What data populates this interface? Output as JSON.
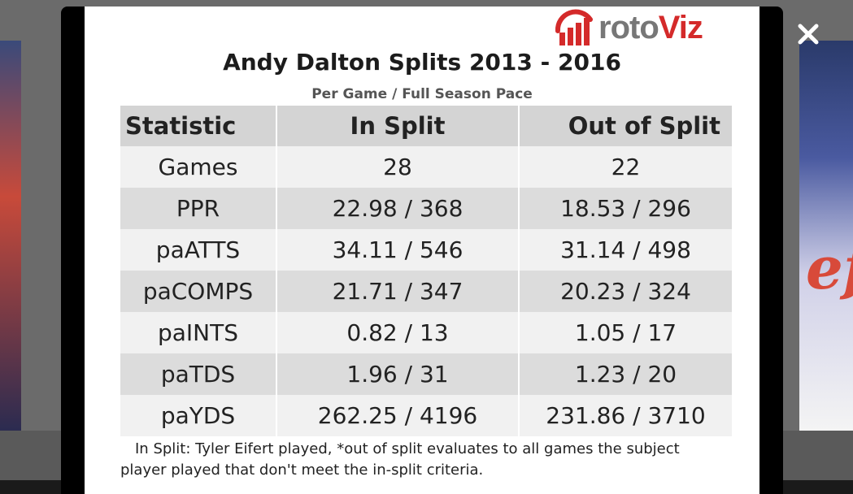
{
  "logo": {
    "prefix": "roto",
    "suffix": "Viz"
  },
  "title": "Andy Dalton Splits 2013 - 2016",
  "subtitle": "Per Game / Full Season Pace",
  "table": {
    "headers": [
      "Statistic",
      "In Split",
      "Out of Split"
    ],
    "rows": [
      [
        "Games",
        "28",
        "22"
      ],
      [
        "PPR",
        "22.98 / 368",
        "18.53 / 296"
      ],
      [
        "paATTS",
        "34.11 / 546",
        "31.14 / 498"
      ],
      [
        "paCOMPS",
        "21.71 / 347",
        "20.23 / 324"
      ],
      [
        "paINTS",
        "0.82 / 13",
        "1.05 / 17"
      ],
      [
        "paTDS",
        "1.96 / 31",
        "1.23 / 20"
      ],
      [
        "paYDS",
        "262.25 / 4196",
        "231.86 / 3710"
      ]
    ]
  },
  "footnote": "In Split: Tyler Eifert played,  *out of split evaluates to all games the subject player played that don't meet the in-split criteria.",
  "close_icon": "close-icon",
  "colors": {
    "accent": "#d42a2a",
    "header_bg": "#d4d4d4",
    "row_light": "#f1f1f1",
    "row_dark": "#dcdcdc"
  }
}
